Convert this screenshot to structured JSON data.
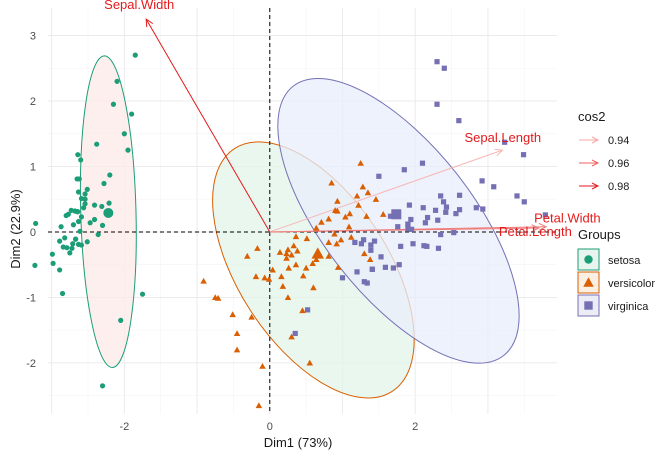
{
  "chart_data": {
    "type": "scatter",
    "xlabel": "Dim1 (73%)",
    "ylabel": "Dim2 (22.9%)",
    "xlim": [
      -3.05,
      3.95
    ],
    "ylim": [
      -2.78,
      3.42
    ],
    "x_ticks": [
      -2,
      0,
      2
    ],
    "y_ticks": [
      -2,
      -1,
      0,
      1,
      2,
      3
    ],
    "grid": true,
    "legend_position": "right",
    "groups_legend": {
      "title": "Groups",
      "entries": [
        {
          "name": "setosa",
          "color": "#1b9e77",
          "shape": "circle"
        },
        {
          "name": "versicolor",
          "color": "#d95f02",
          "shape": "triangle"
        },
        {
          "name": "virginica",
          "color": "#7570b3",
          "shape": "square"
        }
      ]
    },
    "cos2_legend": {
      "title": "cos2",
      "entries": [
        {
          "label": "0.94",
          "color": "#f8a5a5"
        },
        {
          "label": "0.96",
          "color": "#f0625d"
        },
        {
          "label": "0.98",
          "color": "#e41a1c"
        }
      ]
    },
    "variables": [
      {
        "name": "Sepal.Length",
        "x": 3.2,
        "y": 1.25,
        "color": "#f7b6b6"
      },
      {
        "name": "Sepal.Width",
        "x": -1.7,
        "y": 3.25,
        "color": "#e41a1c"
      },
      {
        "name": "Petal.Width",
        "x": 3.8,
        "y": 0.08,
        "color": "#f07a7a"
      },
      {
        "name": "Petal.Length",
        "x": 3.7,
        "y": 0.06,
        "color": "#f07a7a"
      }
    ],
    "series": [
      {
        "name": "setosa",
        "color": "#1b9e77",
        "shape": "circle",
        "centroid": [
          -2.22,
          0.29
        ],
        "ellipse": {
          "cx": -2.22,
          "cy": 0.31,
          "rx": 0.38,
          "ry": 2.38,
          "angle": -1.5,
          "fill": "#fdeaea"
        },
        "points": [
          [
            -2.68,
            0.32
          ],
          [
            -2.71,
            -0.18
          ],
          [
            -2.89,
            -0.14
          ],
          [
            -2.75,
            -0.32
          ],
          [
            -2.73,
            0.33
          ],
          [
            -2.28,
            0.74
          ],
          [
            -2.82,
            -0.09
          ],
          [
            -2.63,
            0.16
          ],
          [
            -2.89,
            -0.58
          ],
          [
            -2.67,
            -0.11
          ],
          [
            -2.51,
            0.65
          ],
          [
            -2.61,
            0.01
          ],
          [
            -2.79,
            -0.24
          ],
          [
            -3.23,
            -0.51
          ],
          [
            -2.64,
            1.18
          ],
          [
            -2.38,
            1.34
          ],
          [
            -2.62,
            0.81
          ],
          [
            -2.65,
            0.31
          ],
          [
            -2.2,
            0.87
          ],
          [
            -2.59,
            0.51
          ],
          [
            -2.31,
            0.39
          ],
          [
            -2.54,
            0.43
          ],
          [
            -3.22,
            0.13
          ],
          [
            -2.3,
            0.1
          ],
          [
            -2.36,
            -0.04
          ],
          [
            -2.51,
            -0.15
          ],
          [
            -2.47,
            0.14
          ],
          [
            -2.56,
            0.37
          ],
          [
            -2.64,
            0.31
          ],
          [
            -2.63,
            -0.19
          ],
          [
            -2.59,
            -0.2
          ],
          [
            -2.41,
            0.41
          ],
          [
            -2.65,
            0.81
          ],
          [
            -2.6,
            1.1
          ],
          [
            -2.67,
            -0.11
          ],
          [
            -2.87,
            0.08
          ],
          [
            -2.63,
            0.61
          ],
          [
            -2.8,
            0.25
          ],
          [
            -2.98,
            -0.48
          ],
          [
            -2.59,
            0.23
          ],
          [
            -2.77,
            0.27
          ],
          [
            -2.85,
            -0.94
          ],
          [
            -2.99,
            -0.34
          ],
          [
            -2.41,
            0.19
          ],
          [
            -2.21,
            0.44
          ],
          [
            -2.72,
            -0.25
          ],
          [
            -2.54,
            0.5
          ],
          [
            -2.84,
            -0.23
          ],
          [
            -2.54,
            0.58
          ],
          [
            -2.7,
            0.11
          ],
          [
            -1.85,
            2.7
          ],
          [
            -2.1,
            2.3
          ],
          [
            -1.9,
            1.8
          ],
          [
            -2.0,
            1.5
          ],
          [
            -2.15,
            1.95
          ],
          [
            -1.95,
            1.25
          ],
          [
            -2.3,
            -2.35
          ],
          [
            -1.75,
            -0.95
          ],
          [
            -2.05,
            -1.35
          ]
        ]
      },
      {
        "name": "versicolor",
        "color": "#d95f02",
        "shape": "triangle",
        "centroid": [
          0.66,
          -0.33
        ],
        "ellipse": {
          "cx": 0.6,
          "cy": -0.58,
          "rx": 1.03,
          "ry": 2.21,
          "angle": -33,
          "fill": "#e3f4ea"
        },
        "points": [
          [
            1.28,
            0.69
          ],
          [
            0.93,
            0.32
          ],
          [
            1.46,
            0.5
          ],
          [
            0.18,
            -0.83
          ],
          [
            1.09,
            0.08
          ],
          [
            0.64,
            -0.42
          ],
          [
            1.1,
            0.28
          ],
          [
            -0.75,
            -1.0
          ],
          [
            1.04,
            0.23
          ],
          [
            -0.01,
            -0.72
          ],
          [
            -0.51,
            -1.26
          ],
          [
            0.51,
            -0.1
          ],
          [
            0.26,
            -0.55
          ],
          [
            0.98,
            -0.12
          ],
          [
            -0.17,
            -0.25
          ],
          [
            0.93,
            0.47
          ],
          [
            0.66,
            -0.35
          ],
          [
            0.23,
            -0.33
          ],
          [
            0.94,
            -0.54
          ],
          [
            0.04,
            -0.58
          ],
          [
            1.12,
            -0.08
          ],
          [
            0.36,
            -0.07
          ],
          [
            1.3,
            -0.33
          ],
          [
            0.92,
            -0.18
          ],
          [
            0.71,
            0.15
          ],
          [
            0.9,
            0.33
          ],
          [
            1.33,
            0.24
          ],
          [
            1.56,
            0.27
          ],
          [
            0.81,
            -0.16
          ],
          [
            -0.31,
            -0.37
          ],
          [
            -0.07,
            -0.7
          ],
          [
            -0.19,
            -0.68
          ],
          [
            0.14,
            -0.31
          ],
          [
            1.38,
            -0.42
          ],
          [
            0.59,
            -0.48
          ],
          [
            0.81,
            0.2
          ],
          [
            1.22,
            0.41
          ],
          [
            0.81,
            -0.37
          ],
          [
            0.25,
            -0.27
          ],
          [
            0.16,
            -0.68
          ],
          [
            0.46,
            -0.67
          ],
          [
            0.89,
            -0.03
          ],
          [
            0.23,
            -0.4
          ],
          [
            -0.71,
            -1.01
          ],
          [
            0.36,
            -0.5
          ],
          [
            0.33,
            -0.21
          ],
          [
            0.38,
            -0.29
          ],
          [
            0.64,
            0.06
          ],
          [
            -0.91,
            -0.75
          ],
          [
            0.3,
            -0.35
          ],
          [
            -0.45,
            -1.55
          ],
          [
            -0.1,
            -2.05
          ],
          [
            -0.25,
            -1.3
          ],
          [
            -0.15,
            -2.65
          ],
          [
            -0.45,
            -1.8
          ],
          [
            0.55,
            -2.0
          ],
          [
            0.3,
            -1.6
          ],
          [
            0.45,
            -1.2
          ],
          [
            0.25,
            -1.0
          ],
          [
            0.6,
            -0.85
          ],
          [
            1.2,
            0.55
          ],
          [
            1.25,
            1.05
          ],
          [
            1.35,
            0.6
          ],
          [
            0.85,
            0.75
          ],
          [
            0.5,
            -0.55
          ]
        ]
      },
      {
        "name": "virginica",
        "color": "#7570b3",
        "shape": "square",
        "centroid": [
          1.74,
          0.27
        ],
        "ellipse": {
          "cx": 1.77,
          "cy": 0.17,
          "rx": 1.03,
          "ry": 2.61,
          "angle": -38,
          "fill": "#e8eefb"
        },
        "points": [
          [
            2.53,
            -0.01
          ],
          [
            1.41,
            -0.57
          ],
          [
            2.61,
            0.34
          ],
          [
            1.97,
            -0.18
          ],
          [
            2.35,
            -0.04
          ],
          [
            3.4,
            0.55
          ],
          [
            0.52,
            -1.19
          ],
          [
            2.93,
            0.35
          ],
          [
            2.32,
            -0.25
          ],
          [
            2.92,
            0.78
          ],
          [
            1.66,
            0.24
          ],
          [
            1.8,
            -0.22
          ],
          [
            2.17,
            0.22
          ],
          [
            1.34,
            -0.78
          ],
          [
            1.59,
            -0.54
          ],
          [
            1.9,
            0.12
          ],
          [
            1.95,
            0.04
          ],
          [
            3.49,
            1.18
          ],
          [
            3.79,
            0.26
          ],
          [
            1.3,
            -0.76
          ],
          [
            2.43,
            0.38
          ],
          [
            1.2,
            -0.61
          ],
          [
            3.5,
            0.46
          ],
          [
            1.39,
            -0.2
          ],
          [
            2.28,
            0.33
          ],
          [
            2.61,
            0.56
          ],
          [
            1.26,
            -0.18
          ],
          [
            1.29,
            -0.12
          ],
          [
            2.12,
            -0.21
          ],
          [
            2.39,
            0.46
          ],
          [
            2.84,
            0.37
          ],
          [
            3.23,
            1.37
          ],
          [
            2.16,
            -0.22
          ],
          [
            1.44,
            -0.14
          ],
          [
            1.78,
            -0.5
          ],
          [
            3.08,
            0.69
          ],
          [
            2.14,
            0.14
          ],
          [
            1.9,
            0.05
          ],
          [
            1.17,
            -0.16
          ],
          [
            2.11,
            0.37
          ],
          [
            2.31,
            0.18
          ],
          [
            1.92,
            0.41
          ],
          [
            1.41,
            -0.57
          ],
          [
            2.56,
            0.28
          ],
          [
            2.42,
            0.3
          ],
          [
            1.94,
            0.19
          ],
          [
            1.53,
            -0.38
          ],
          [
            1.76,
            0.08
          ],
          [
            1.9,
            0.12
          ],
          [
            1.39,
            -0.28
          ],
          [
            2.3,
            2.6
          ],
          [
            2.4,
            2.5
          ],
          [
            2.3,
            1.95
          ],
          [
            2.6,
            1.7
          ],
          [
            2.1,
            1.05
          ],
          [
            1.85,
            0.95
          ],
          [
            1.5,
            0.85
          ],
          [
            2.35,
            0.55
          ],
          [
            1.7,
            -0.55
          ],
          [
            1.0,
            -0.7
          ],
          [
            0.35,
            -1.55
          ]
        ]
      }
    ]
  }
}
